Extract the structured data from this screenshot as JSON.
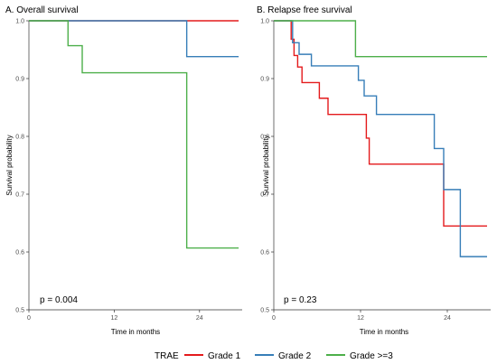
{
  "chart_data": [
    {
      "type": "line",
      "title": "A. Overall survival",
      "xlabel": "Time in months",
      "ylabel": "Survival probability",
      "xlim": [
        0,
        30
      ],
      "ylim": [
        0.5,
        1.0
      ],
      "xticks": [
        0,
        12,
        24
      ],
      "yticks": [
        0.5,
        0.6,
        0.7,
        0.8,
        0.9,
        1.0
      ],
      "ytick_labels": [
        "0.5",
        "0.6",
        "0.7",
        "0.8",
        "0.9",
        "1.0"
      ],
      "grid": false,
      "annotation": "p = 0.004",
      "series": [
        {
          "name": "Grade 1",
          "color": "#E41A1C",
          "steps": [
            [
              0,
              1.0
            ],
            [
              29.5,
              1.0
            ]
          ]
        },
        {
          "name": "Grade 2",
          "color": "#377EB8",
          "steps": [
            [
              0,
              1.0
            ],
            [
              22.2,
              0.938
            ],
            [
              29.5,
              0.938
            ]
          ]
        },
        {
          "name": "Grade >=3",
          "color": "#4DAF4A",
          "steps": [
            [
              0,
              1.0
            ],
            [
              5.5,
              0.957
            ],
            [
              7.5,
              0.91
            ],
            [
              22.2,
              0.607
            ],
            [
              29.5,
              0.607
            ]
          ]
        }
      ]
    },
    {
      "type": "line",
      "title": "B. Relapse free survival",
      "xlabel": "Time in months",
      "ylabel": "Survival probability",
      "xlim": [
        0,
        30
      ],
      "ylim": [
        0.5,
        1.0
      ],
      "xticks": [
        0,
        12,
        24
      ],
      "yticks": [
        0.5,
        0.6,
        0.7,
        0.8,
        0.9,
        1.0
      ],
      "ytick_labels": [
        "0.5",
        "0.6",
        "0.7",
        "0.8",
        "0.9",
        "1.0"
      ],
      "grid": false,
      "annotation": "p = 0.23",
      "series": [
        {
          "name": "Grade 1",
          "color": "#E41A1C",
          "steps": [
            [
              0,
              1.0
            ],
            [
              2.4,
              0.968
            ],
            [
              2.8,
              0.94
            ],
            [
              3.3,
              0.92
            ],
            [
              3.9,
              0.893
            ],
            [
              6.3,
              0.866
            ],
            [
              7.5,
              0.838
            ],
            [
              12.8,
              0.797
            ],
            [
              13.2,
              0.752
            ],
            [
              23.5,
              0.645
            ],
            [
              29.5,
              0.645
            ]
          ]
        },
        {
          "name": "Grade 2",
          "color": "#377EB8",
          "steps": [
            [
              0,
              1.0
            ],
            [
              2.6,
              0.962
            ],
            [
              3.5,
              0.942
            ],
            [
              5.2,
              0.922
            ],
            [
              11.7,
              0.897
            ],
            [
              12.5,
              0.87
            ],
            [
              14.2,
              0.838
            ],
            [
              22.2,
              0.779
            ],
            [
              23.5,
              0.708
            ],
            [
              25.8,
              0.592
            ],
            [
              29.5,
              0.592
            ]
          ]
        },
        {
          "name": "Grade >=3",
          "color": "#4DAF4A",
          "steps": [
            [
              0,
              1.0
            ],
            [
              11.3,
              0.938
            ],
            [
              29.5,
              0.938
            ]
          ]
        }
      ]
    }
  ],
  "legend": {
    "title": "TRAE",
    "position": "bottom",
    "items": [
      {
        "label": "Grade 1",
        "color": "#E41A1C"
      },
      {
        "label": "Grade 2",
        "color": "#377EB8"
      },
      {
        "label": "Grade >=3",
        "color": "#4DAF4A"
      }
    ]
  }
}
